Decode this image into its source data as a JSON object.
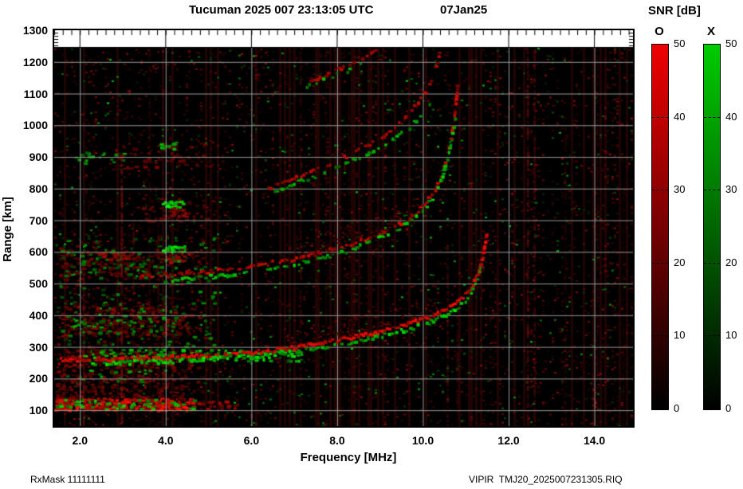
{
  "header": {
    "title": "Tucuman 2025 007 23:13:05 UTC",
    "date": "07Jan25"
  },
  "footer": {
    "left": "RxMask 11111111",
    "right": "VIPIR  TMJ20_2025007231305.RIQ"
  },
  "colorbar": {
    "title": "SNR [dB]",
    "o_label": "O",
    "x_label": "X",
    "ticks": [
      0,
      10,
      20,
      30,
      40,
      50
    ],
    "tick_labels": [
      "0",
      "10",
      "20",
      "30",
      "40",
      "50"
    ],
    "o_color_top": "#ee0000",
    "x_color_top": "#00cc00",
    "bottom_color": "#000000"
  },
  "chart_data": {
    "type": "heatmap",
    "title": "Tucuman 2025 007 23:13:05 UTC 07Jan25",
    "xlabel": "Frequency [MHz]",
    "ylabel": "Range [km]",
    "xlim": [
      1.4,
      14.9
    ],
    "ylim": [
      50,
      1300
    ],
    "xticks": [
      2,
      4,
      6,
      8,
      10,
      12,
      14
    ],
    "xtick_labels": [
      "2.0",
      "4.0",
      "6.0",
      "8.0",
      "10.0",
      "12.0",
      "14.0"
    ],
    "yticks": [
      100,
      200,
      300,
      400,
      500,
      600,
      700,
      800,
      900,
      1000,
      1100,
      1200,
      1300
    ],
    "ytick_labels": [
      "100",
      "200",
      "300",
      "400",
      "500",
      "600",
      "700",
      "800",
      "900",
      "1000",
      "1100",
      "1200",
      "1300"
    ],
    "grid": true,
    "colors": {
      "background": "#000000",
      "grid": "#999999",
      "frame": "#000000",
      "ruler_strip": "#ffffff",
      "o_mode": "#ee0000",
      "x_mode": "#00cc00"
    },
    "snr_scale_db": [
      0,
      50
    ],
    "traces": [
      {
        "name": "F-1hop-O",
        "mode": "O",
        "gap": 0.06,
        "bright": [
          150,
          255
        ],
        "spread": [
          6.8,
          10.3
        ],
        "points": [
          [
            1.5,
            260
          ],
          [
            2.0,
            260
          ],
          [
            3.0,
            262
          ],
          [
            4.0,
            266
          ],
          [
            5.0,
            272
          ],
          [
            6.0,
            282
          ],
          [
            6.5,
            289
          ],
          [
            7.0,
            297
          ],
          [
            7.5,
            308
          ],
          [
            8.0,
            320
          ],
          [
            8.5,
            333
          ],
          [
            9.0,
            348
          ],
          [
            9.5,
            365
          ],
          [
            10.0,
            386
          ],
          [
            10.4,
            408
          ],
          [
            10.7,
            430
          ],
          [
            10.95,
            455
          ],
          [
            11.15,
            490
          ],
          [
            11.3,
            530
          ],
          [
            11.4,
            580
          ],
          [
            11.47,
            635
          ],
          [
            11.5,
            660
          ]
        ]
      },
      {
        "name": "F-1hop-X",
        "mode": "X",
        "gap": 0.3,
        "bright": [
          120,
          235
        ],
        "points": [
          [
            2.2,
            248
          ],
          [
            3.0,
            250
          ],
          [
            4.0,
            254
          ],
          [
            5.0,
            260
          ],
          [
            6.0,
            270
          ],
          [
            7.0,
            284
          ],
          [
            8.0,
            306
          ],
          [
            8.5,
            318
          ],
          [
            9.0,
            333
          ],
          [
            9.5,
            350
          ],
          [
            10.0,
            370
          ],
          [
            10.4,
            391
          ],
          [
            10.7,
            413
          ],
          [
            10.95,
            438
          ],
          [
            11.1,
            462
          ],
          [
            11.2,
            487
          ],
          [
            11.3,
            520
          ],
          [
            11.35,
            550
          ]
        ]
      },
      {
        "name": "F-2hop-O",
        "mode": "O",
        "gap": 0.3,
        "bright": [
          120,
          220
        ],
        "spread": [
          7.0,
          10.0
        ],
        "points": [
          [
            3.3,
            522
          ],
          [
            4.0,
            527
          ],
          [
            5.0,
            538
          ],
          [
            6.0,
            554
          ],
          [
            7.0,
            578
          ],
          [
            7.5,
            593
          ],
          [
            8.0,
            611
          ],
          [
            8.5,
            632
          ],
          [
            9.0,
            657
          ],
          [
            9.4,
            682
          ],
          [
            9.8,
            714
          ],
          [
            10.05,
            750
          ],
          [
            10.3,
            800
          ],
          [
            10.5,
            865
          ],
          [
            10.65,
            945
          ],
          [
            10.75,
            1035
          ],
          [
            10.82,
            1130
          ]
        ]
      },
      {
        "name": "F-2hop-X",
        "mode": "X",
        "gap": 0.45,
        "bright": [
          110,
          220
        ],
        "points": [
          [
            4.0,
            508
          ],
          [
            5.0,
            520
          ],
          [
            6.0,
            537
          ],
          [
            7.0,
            560
          ],
          [
            8.0,
            592
          ],
          [
            8.7,
            625
          ],
          [
            9.3,
            662
          ],
          [
            9.8,
            705
          ],
          [
            10.2,
            762
          ],
          [
            10.45,
            830
          ],
          [
            10.6,
            900
          ],
          [
            10.7,
            970
          ],
          [
            10.78,
            1040
          ]
        ]
      },
      {
        "name": "F-3hop-O",
        "mode": "O",
        "gap": 0.38,
        "bright": [
          110,
          210
        ],
        "points": [
          [
            6.4,
            800
          ],
          [
            7.0,
            830
          ],
          [
            7.5,
            856
          ],
          [
            8.0,
            886
          ],
          [
            8.5,
            920
          ],
          [
            9.0,
            960
          ],
          [
            9.4,
            1000
          ],
          [
            9.7,
            1040
          ],
          [
            10.0,
            1090
          ],
          [
            10.2,
            1140
          ],
          [
            10.35,
            1200
          ],
          [
            10.42,
            1240
          ]
        ]
      },
      {
        "name": "F-3hop-X",
        "mode": "X",
        "gap": 0.5,
        "bright": [
          100,
          200
        ],
        "points": [
          [
            6.5,
            788
          ],
          [
            7.0,
            815
          ],
          [
            7.6,
            845
          ],
          [
            8.2,
            878
          ],
          [
            8.8,
            915
          ],
          [
            9.3,
            952
          ],
          [
            9.7,
            992
          ],
          [
            10.0,
            1035
          ],
          [
            10.2,
            1080
          ]
        ]
      },
      {
        "name": "F-4hop-O",
        "mode": "O",
        "gap": 0.42,
        "bright": [
          100,
          200
        ],
        "points": [
          [
            7.35,
            1135
          ],
          [
            7.8,
            1160
          ],
          [
            8.2,
            1185
          ],
          [
            8.6,
            1210
          ],
          [
            9.0,
            1240
          ]
        ]
      },
      {
        "name": "F-4hop-X",
        "mode": "X",
        "gap": 0.55,
        "bright": [
          100,
          190
        ],
        "points": [
          [
            7.3,
            1122
          ],
          [
            7.8,
            1148
          ],
          [
            8.3,
            1175
          ],
          [
            8.7,
            1200
          ]
        ]
      }
    ],
    "bands": [
      {
        "f": [
          1.4,
          4.7
        ],
        "km": [
          103,
          140
        ],
        "color": "red",
        "density": 0.95,
        "bright": [
          110,
          255
        ]
      },
      {
        "f": [
          4.7,
          5.7
        ],
        "km": [
          106,
          132
        ],
        "color": "red",
        "density": 0.4,
        "bright": [
          80,
          170
        ]
      },
      {
        "f": [
          1.4,
          4.7
        ],
        "km": [
          106,
          138
        ],
        "color": "green",
        "density": 0.22,
        "bright": [
          100,
          230
        ]
      },
      {
        "f": [
          1.4,
          4.5
        ],
        "km": [
          142,
          180
        ],
        "color": "red",
        "density": 0.25,
        "bright": [
          55,
          130
        ]
      },
      {
        "f": [
          1.4,
          4.6
        ],
        "km": [
          178,
          248
        ],
        "color": "red",
        "density": 0.18,
        "bright": [
          50,
          130
        ]
      },
      {
        "f": [
          1.6,
          4.4
        ],
        "km": [
          185,
          230
        ],
        "color": "green",
        "density": 0.08,
        "bright": [
          80,
          180
        ]
      },
      {
        "f": [
          1.4,
          4.8
        ],
        "km": [
          240,
          292
        ],
        "color": "red",
        "density": 0.3,
        "bright": [
          60,
          150
        ]
      },
      {
        "f": [
          2.0,
          7.2
        ],
        "km": [
          258,
          295
        ],
        "color": "green",
        "density": 0.3,
        "bright": [
          100,
          225
        ]
      },
      {
        "f": [
          1.5,
          4.6
        ],
        "km": [
          340,
          432
        ],
        "color": "red",
        "density": 0.28,
        "bright": [
          55,
          140
        ]
      },
      {
        "f": [
          1.7,
          4.4
        ],
        "km": [
          350,
          420
        ],
        "color": "green",
        "density": 0.1,
        "bright": [
          70,
          180
        ]
      },
      {
        "f": [
          1.4,
          4.2
        ],
        "km": [
          515,
          615
        ],
        "color": "red",
        "density": 0.18,
        "bright": [
          50,
          120
        ]
      },
      {
        "f": [
          1.5,
          4.2
        ],
        "km": [
          520,
          610
        ],
        "color": "green",
        "density": 0.09,
        "bright": [
          60,
          160
        ]
      },
      {
        "f": [
          2.4,
          3.3
        ],
        "km": [
          578,
          602
        ],
        "color": "red",
        "density": 0.5,
        "bright": [
          90,
          170
        ]
      },
      {
        "f": [
          3.9,
          4.5
        ],
        "km": [
          600,
          622
        ],
        "color": "green",
        "density": 0.8,
        "bright": [
          150,
          240
        ]
      },
      {
        "f": [
          4.0,
          4.6
        ],
        "km": [
          570,
          596
        ],
        "color": "red",
        "density": 0.5,
        "bright": [
          90,
          180
        ]
      },
      {
        "f": [
          3.9,
          4.45
        ],
        "km": [
          742,
          768
        ],
        "color": "green",
        "density": 0.85,
        "bright": [
          150,
          245
        ]
      },
      {
        "f": [
          3.95,
          4.5
        ],
        "km": [
          714,
          742
        ],
        "color": "red",
        "density": 0.6,
        "bright": [
          100,
          190
        ]
      },
      {
        "f": [
          3.3,
          5.2
        ],
        "km": [
          698,
          772
        ],
        "color": "red",
        "density": 0.15,
        "bright": [
          50,
          110
        ]
      },
      {
        "f": [
          2.8,
          5.0
        ],
        "km": [
          865,
          945
        ],
        "color": "red",
        "density": 0.14,
        "bright": [
          50,
          115
        ]
      },
      {
        "f": [
          1.8,
          3.4
        ],
        "km": [
          880,
          918
        ],
        "color": "green",
        "density": 0.12,
        "bright": [
          70,
          170
        ]
      },
      {
        "f": [
          3.85,
          4.3
        ],
        "km": [
          928,
          950
        ],
        "color": "green",
        "density": 0.5,
        "bright": [
          110,
          200
        ]
      },
      {
        "f": [
          1.4,
          5.2
        ],
        "km": [
          280,
          650
        ],
        "color": "green",
        "density": 0.05,
        "bright": [
          50,
          150
        ]
      },
      {
        "f": [
          1.4,
          5.0
        ],
        "km": [
          130,
          650
        ],
        "color": "red",
        "density": 0.06,
        "bright": [
          40,
          100
        ]
      }
    ],
    "rfi_lines": [
      {
        "f": 2.06,
        "km": [
          50,
          520
        ],
        "rgb": [
          130,
          15,
          15
        ],
        "alpha": 0.55
      },
      {
        "f": 2.95,
        "km": [
          50,
          900
        ],
        "rgb": [
          170,
          20,
          20
        ],
        "alpha": 0.6
      },
      {
        "f": 3.22,
        "km": [
          50,
          700
        ],
        "rgb": [
          110,
          12,
          12
        ],
        "alpha": 0.45
      },
      {
        "f": 3.6,
        "km": [
          50,
          1240
        ],
        "rgb": [
          90,
          10,
          10
        ],
        "alpha": 0.4
      },
      {
        "f": 3.8,
        "km": [
          50,
          700
        ],
        "rgb": [
          110,
          12,
          12
        ],
        "alpha": 0.45
      },
      {
        "f": 7.12,
        "km": [
          50,
          1240
        ],
        "rgb": [
          100,
          12,
          12
        ],
        "alpha": 0.5
      },
      {
        "f": 7.72,
        "km": [
          50,
          1240
        ],
        "rgb": [
          80,
          10,
          10
        ],
        "alpha": 0.4
      },
      {
        "f": 8.25,
        "km": [
          50,
          1100
        ],
        "rgb": [
          90,
          10,
          10
        ],
        "alpha": 0.4
      },
      {
        "f": 10.55,
        "km": [
          50,
          620
        ],
        "rgb": [
          110,
          14,
          14
        ],
        "alpha": 0.5
      },
      {
        "f": 10.78,
        "km": [
          50,
          460
        ],
        "rgb": [
          100,
          12,
          12
        ],
        "alpha": 0.45
      },
      {
        "f": 12.42,
        "km": [
          50,
          1240
        ],
        "rgb": [
          150,
          18,
          18
        ],
        "alpha": 0.55
      },
      {
        "f": 12.58,
        "km": [
          50,
          1240
        ],
        "rgb": [
          130,
          16,
          16
        ],
        "alpha": 0.5
      },
      {
        "f": 13.3,
        "km": [
          50,
          1000
        ],
        "rgb": [
          80,
          10,
          10
        ],
        "alpha": 0.4
      },
      {
        "f": 14.05,
        "km": [
          50,
          1240
        ],
        "rgb": [
          90,
          10,
          10
        ],
        "alpha": 0.4
      },
      {
        "f": 14.65,
        "km": [
          50,
          800
        ],
        "rgb": [
          80,
          10,
          10
        ],
        "alpha": 0.35
      }
    ],
    "noise": {
      "seed": 42,
      "red_base": 16,
      "green_base": 4,
      "red_min_bright": 35,
      "red_max_bright": 170,
      "green_max_bright": 200,
      "haze_prob": 0.12
    }
  }
}
